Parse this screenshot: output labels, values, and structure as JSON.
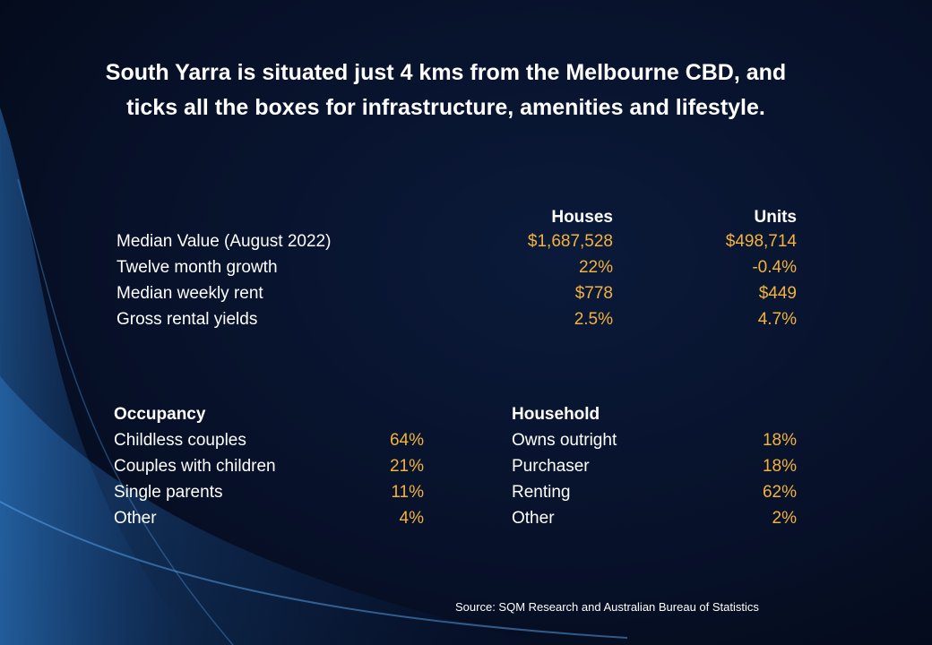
{
  "title": "South Yarra is situated just 4 kms from the Melbourne CBD, and ticks all the boxes for infrastructure, amenities and lifestyle.",
  "summary": {
    "headers": [
      "Houses",
      "Units"
    ],
    "rows": [
      {
        "label": "Median Value (August 2022)",
        "houses": "$1,687,528",
        "units": "$498,714"
      },
      {
        "label": "Twelve month growth",
        "houses": "22%",
        "units": "-0.4%"
      },
      {
        "label": "Median weekly rent",
        "houses": "$778",
        "units": "$449"
      },
      {
        "label": "Gross rental yields",
        "houses": "2.5%",
        "units": "4.7%"
      }
    ]
  },
  "occupancy": {
    "heading": "Occupancy",
    "rows": [
      {
        "label": "Childless couples",
        "value": "64%"
      },
      {
        "label": "Couples with children",
        "value": "21%"
      },
      {
        "label": "Single parents",
        "value": "11%"
      },
      {
        "label": "Other",
        "value": "4%"
      }
    ]
  },
  "household": {
    "heading": "Household",
    "rows": [
      {
        "label": "Owns outright",
        "value": "18%"
      },
      {
        "label": "Purchaser",
        "value": "18%"
      },
      {
        "label": "Renting",
        "value": "62%"
      },
      {
        "label": "Other",
        "value": "2%"
      }
    ]
  },
  "source": "Source:  SQM Research and Australian Bureau of Statistics"
}
